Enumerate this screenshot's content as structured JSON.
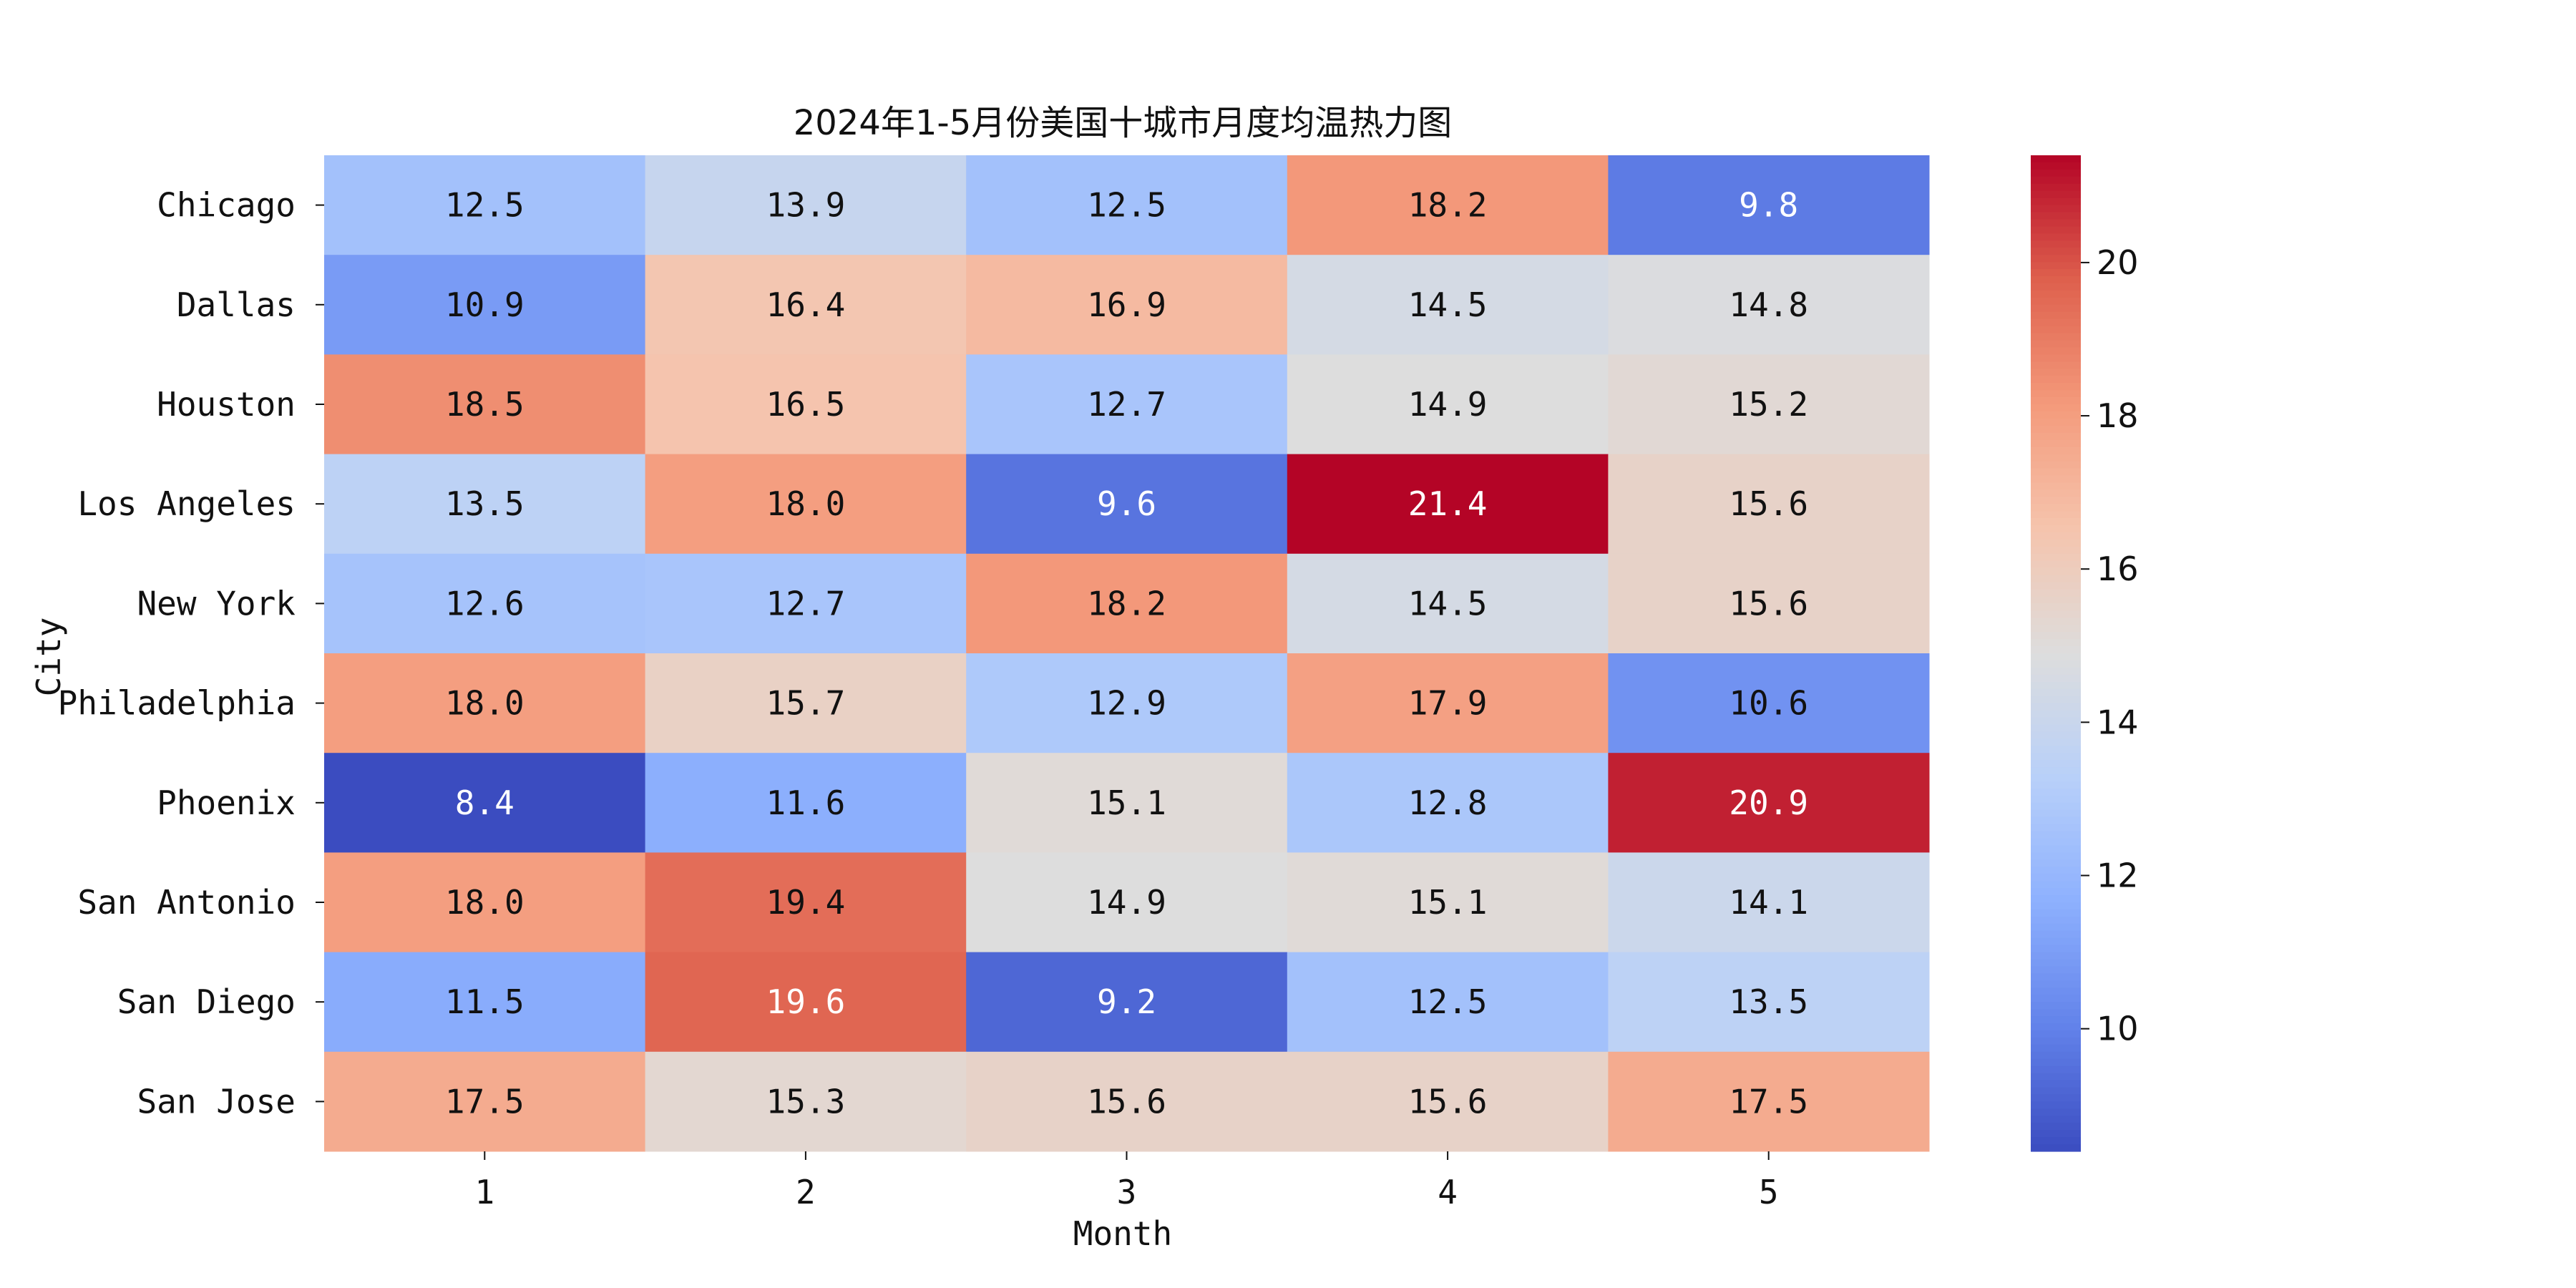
{
  "chart_data": {
    "type": "heatmap",
    "title": "2024年1-5月份美国十城市月度均温热力图",
    "xlabel": "Month",
    "ylabel": "City",
    "x": [
      "1",
      "2",
      "3",
      "4",
      "5"
    ],
    "y": [
      "Chicago",
      "Dallas",
      "Houston",
      "Los Angeles",
      "New York",
      "Philadelphia",
      "Phoenix",
      "San Antonio",
      "San Diego",
      "San Jose"
    ],
    "values": [
      [
        12.5,
        13.9,
        12.5,
        18.2,
        9.8
      ],
      [
        10.9,
        16.4,
        16.9,
        14.5,
        14.8
      ],
      [
        18.5,
        16.5,
        12.7,
        14.9,
        15.2
      ],
      [
        13.5,
        18.0,
        9.6,
        21.4,
        15.6
      ],
      [
        12.6,
        12.7,
        18.2,
        14.5,
        15.6
      ],
      [
        18.0,
        15.7,
        12.9,
        17.9,
        10.6
      ],
      [
        8.4,
        11.6,
        15.1,
        12.8,
        20.9
      ],
      [
        18.0,
        19.4,
        14.9,
        15.1,
        14.1
      ],
      [
        11.5,
        19.6,
        9.2,
        12.5,
        13.5
      ],
      [
        17.5,
        15.3,
        15.6,
        15.6,
        17.5
      ]
    ],
    "colormap": "coolwarm",
    "vmin": 8.4,
    "vmax": 21.4,
    "colorbar_ticks": [
      10,
      12,
      14,
      16,
      18,
      20
    ],
    "annotate_format": "0.1f"
  }
}
